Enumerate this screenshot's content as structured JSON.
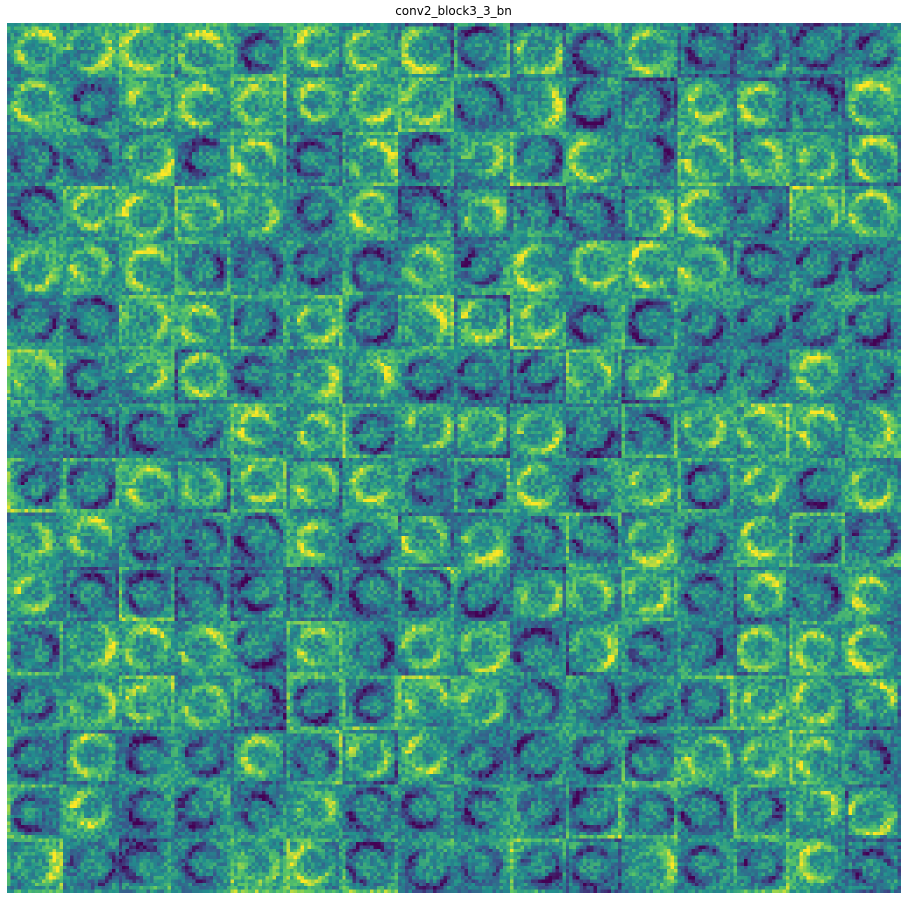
{
  "chart_data": {
    "type": "heatmap",
    "title": "conv2_block3_3_bn",
    "subtitle": "",
    "xlabel": "",
    "ylabel": "",
    "axis_visible": false,
    "grid": false,
    "legend": "none",
    "colormap": "viridis",
    "grid_layout": {
      "rows": 16,
      "cols": 16,
      "tile_width": 16,
      "tile_height": 16
    },
    "feature_maps": 256,
    "color_scale": [
      "#440154",
      "#3b528b",
      "#21908d",
      "#5dc863",
      "#fde725"
    ]
  }
}
